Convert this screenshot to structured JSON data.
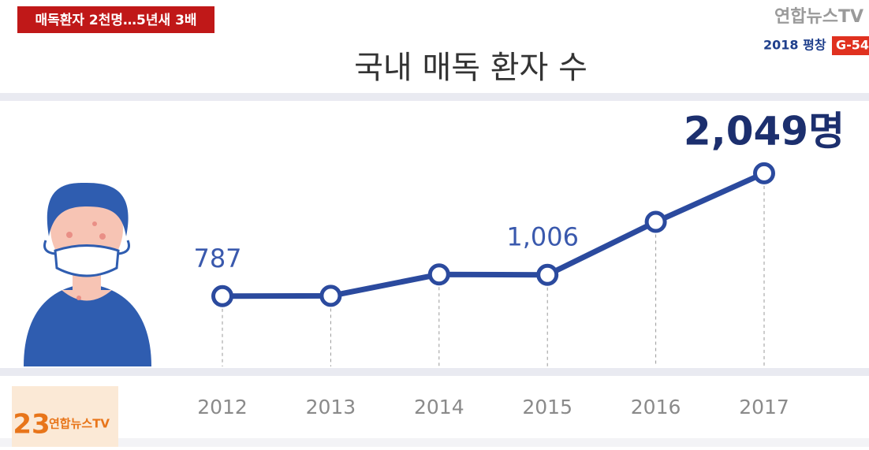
{
  "headline": "매독환자 2천명…5년새 3배",
  "broadcaster": {
    "watermark": "연합뉴스TV",
    "event": "2018 평창",
    "countdown": "G-54",
    "channel": "23",
    "logo": "연합뉴스TV"
  },
  "chart_data": {
    "type": "line",
    "title": "국내 매독 환자 수",
    "categories": [
      "2012",
      "2013",
      "2014",
      "2015",
      "2016",
      "2017"
    ],
    "values": [
      787,
      790,
      1010,
      1006,
      1550,
      2049
    ],
    "value_labels": [
      "787",
      null,
      null,
      "1,006",
      null,
      "2,049명"
    ],
    "color": "#2b4a9e",
    "ylim": [
      0,
      2400
    ]
  }
}
